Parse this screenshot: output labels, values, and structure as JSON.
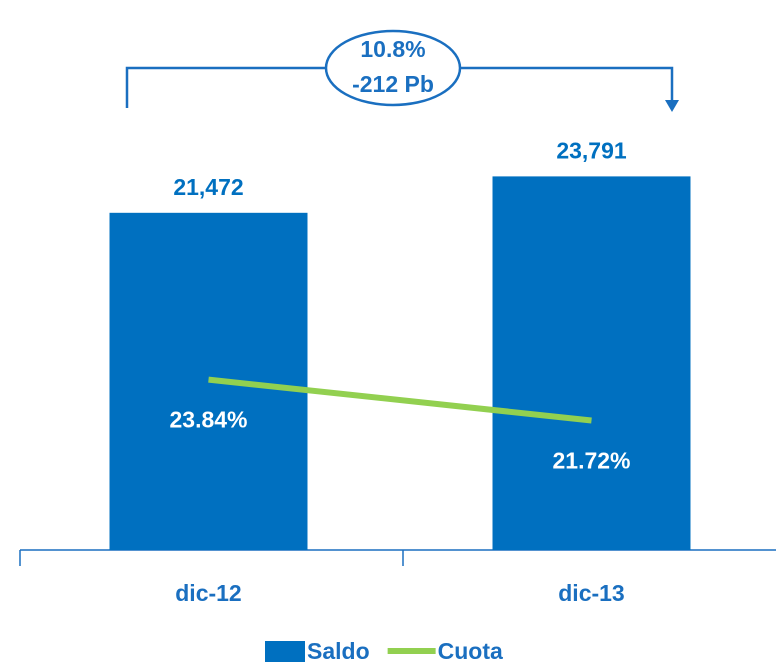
{
  "chart_data": {
    "type": "bar",
    "categories": [
      "dic-12",
      "dic-13"
    ],
    "series": [
      {
        "name": "Saldo",
        "type": "bar",
        "color": "#0070c0",
        "values": [
          21472,
          23791
        ],
        "value_labels": [
          "21,472",
          "23,791"
        ]
      },
      {
        "name": "Cuota",
        "type": "line",
        "axis": "y2",
        "color": "#92d050",
        "values": [
          23.84,
          21.72
        ],
        "value_labels": [
          "23.84%",
          "21.72%"
        ]
      }
    ],
    "ylim": [
      0,
      27000
    ],
    "y2lim": [
      15,
      37
    ],
    "annotations": [
      "10.8%",
      "-212 Pb"
    ],
    "legend": "bottom"
  }
}
